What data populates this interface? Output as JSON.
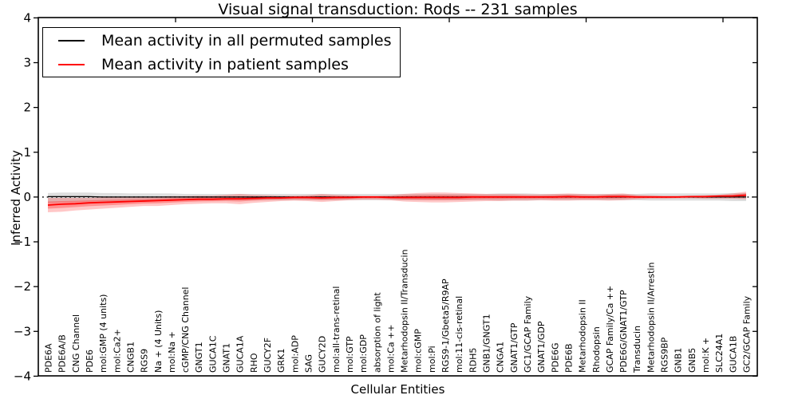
{
  "chart_data": {
    "type": "line",
    "title": "Visual signal transduction: Rods -- 231 samples",
    "xlabel": "Cellular Entities",
    "ylabel": "Inferred Activity",
    "ylim": [
      -4,
      4
    ],
    "yticks": [
      4,
      3,
      2,
      1,
      0,
      -1,
      -2,
      -3,
      -4
    ],
    "grid": false,
    "legend_position": "upper left",
    "zero_reference_line": true,
    "colors": {
      "permuted": "#000000",
      "patient": "#ff0000",
      "permuted_band": "#000000",
      "patient_band": "#ff0000"
    },
    "categories": [
      "PDE6A",
      "PDE6A/B",
      "CNG Channel",
      "PDE6",
      "mol:GMP (4 units)",
      "mol:Ca2+",
      "CNGB1",
      "RGS9",
      "Na + (4 Units)",
      "mol:Na +",
      "cGMP/CNG Channel",
      "GNGT1",
      "GUCA1C",
      "GNAT1",
      "GUCA1A",
      "RHO",
      "GUCY2F",
      "GRK1",
      "mol:ADP",
      "SAG",
      "GUCY2D",
      "mol:all-trans-retinal",
      "mol:GTP",
      "mol:GDP",
      "absorption of light",
      "mol:Ca ++",
      "Metarhodopsin II/Transducin",
      "mol:cGMP",
      "mol:Pi",
      "RGS9-1/Gbeta5/R9AP",
      "mol:11-cis-retinal",
      "RDH5",
      "GNB1/GNGT1",
      "CNGA1",
      "GNAT1/GTP",
      "GC1/GCAP Family",
      "GNAT1/GDP",
      "PDE6G",
      "PDE6B",
      "Metarhodopsin II",
      "Rhodopsin",
      "GCAP Family/Ca ++",
      "PDE6G/GNAT1/GTP",
      "Transducin",
      "Metarhodopsin II/Arrestin",
      "RGS9BP",
      "GNB1",
      "GNB5",
      "mol:K +",
      "SLC24A1",
      "GUCA1B",
      "GC2/GCAP Family"
    ],
    "series": [
      {
        "name": "Mean activity in all permuted samples",
        "color": "#000000",
        "band_opacity": 0.13,
        "values": [
          0.01,
          0.01,
          0.01,
          0.01,
          0.0,
          0.0,
          0.0,
          0.0,
          0.0,
          0.0,
          0.0,
          0.0,
          0.0,
          0.0,
          0.0,
          0.0,
          0.0,
          0.0,
          0.0,
          0.0,
          0.0,
          0.0,
          0.0,
          0.0,
          0.0,
          0.0,
          0.0,
          0.0,
          0.0,
          0.0,
          0.0,
          0.0,
          0.0,
          0.0,
          0.0,
          0.0,
          0.0,
          0.0,
          0.0,
          0.0,
          0.0,
          0.0,
          0.0,
          0.0,
          0.0,
          0.0,
          0.0,
          0.0,
          0.0,
          0.0,
          0.0,
          0.0
        ],
        "band_upper": [
          0.09,
          0.1,
          0.1,
          0.1,
          0.09,
          0.09,
          0.08,
          0.08,
          0.08,
          0.08,
          0.07,
          0.07,
          0.07,
          0.07,
          0.07,
          0.07,
          0.07,
          0.07,
          0.07,
          0.07,
          0.07,
          0.07,
          0.07,
          0.07,
          0.07,
          0.07,
          0.07,
          0.07,
          0.07,
          0.07,
          0.07,
          0.07,
          0.07,
          0.08,
          0.08,
          0.08,
          0.07,
          0.07,
          0.07,
          0.07,
          0.07,
          0.07,
          0.07,
          0.07,
          0.08,
          0.08,
          0.08,
          0.08,
          0.08,
          0.08,
          0.09,
          0.09
        ],
        "band_lower": [
          -0.13,
          -0.12,
          -0.11,
          -0.1,
          -0.1,
          -0.09,
          -0.09,
          -0.08,
          -0.08,
          -0.08,
          -0.07,
          -0.07,
          -0.07,
          -0.07,
          -0.07,
          -0.07,
          -0.07,
          -0.07,
          -0.07,
          -0.07,
          -0.07,
          -0.07,
          -0.07,
          -0.07,
          -0.07,
          -0.07,
          -0.07,
          -0.07,
          -0.07,
          -0.07,
          -0.07,
          -0.07,
          -0.07,
          -0.08,
          -0.08,
          -0.08,
          -0.07,
          -0.07,
          -0.07,
          -0.07,
          -0.07,
          -0.07,
          -0.07,
          -0.07,
          -0.08,
          -0.08,
          -0.08,
          -0.08,
          -0.08,
          -0.08,
          -0.09,
          -0.09
        ]
      },
      {
        "name": "Mean activity in patient samples",
        "color": "#ff0000",
        "band_opacity": 0.22,
        "values": [
          -0.18,
          -0.16,
          -0.15,
          -0.13,
          -0.12,
          -0.11,
          -0.1,
          -0.09,
          -0.08,
          -0.07,
          -0.06,
          -0.05,
          -0.05,
          -0.04,
          -0.04,
          -0.03,
          -0.02,
          -0.02,
          -0.01,
          -0.01,
          -0.02,
          -0.01,
          -0.01,
          0.0,
          0.0,
          -0.01,
          -0.01,
          -0.01,
          -0.01,
          -0.01,
          -0.01,
          0.0,
          0.0,
          0.0,
          0.0,
          0.0,
          0.0,
          0.0,
          0.01,
          0.0,
          0.0,
          0.01,
          0.01,
          0.0,
          0.0,
          0.0,
          0.0,
          0.01,
          0.01,
          0.02,
          0.02,
          0.04
        ],
        "band_upper": [
          -0.02,
          -0.02,
          -0.02,
          -0.02,
          -0.01,
          -0.01,
          0.0,
          0.0,
          0.01,
          0.02,
          0.02,
          0.03,
          0.03,
          0.05,
          0.07,
          0.05,
          0.04,
          0.03,
          0.03,
          0.04,
          0.07,
          0.05,
          0.04,
          0.03,
          0.03,
          0.04,
          0.07,
          0.09,
          0.1,
          0.1,
          0.09,
          0.08,
          0.07,
          0.07,
          0.07,
          0.06,
          0.06,
          0.07,
          0.08,
          0.07,
          0.06,
          0.07,
          0.08,
          0.05,
          0.04,
          0.03,
          0.03,
          0.03,
          0.04,
          0.05,
          0.08,
          0.12
        ],
        "band_lower": [
          -0.34,
          -0.33,
          -0.3,
          -0.28,
          -0.26,
          -0.24,
          -0.22,
          -0.2,
          -0.2,
          -0.18,
          -0.16,
          -0.15,
          -0.14,
          -0.14,
          -0.16,
          -0.13,
          -0.11,
          -0.09,
          -0.08,
          -0.09,
          -0.11,
          -0.09,
          -0.07,
          -0.06,
          -0.06,
          -0.07,
          -0.1,
          -0.11,
          -0.12,
          -0.12,
          -0.11,
          -0.1,
          -0.09,
          -0.09,
          -0.08,
          -0.08,
          -0.07,
          -0.08,
          -0.08,
          -0.07,
          -0.07,
          -0.08,
          -0.07,
          -0.05,
          -0.04,
          -0.04,
          -0.03,
          -0.03,
          -0.04,
          -0.04,
          -0.04,
          -0.05
        ]
      }
    ]
  }
}
